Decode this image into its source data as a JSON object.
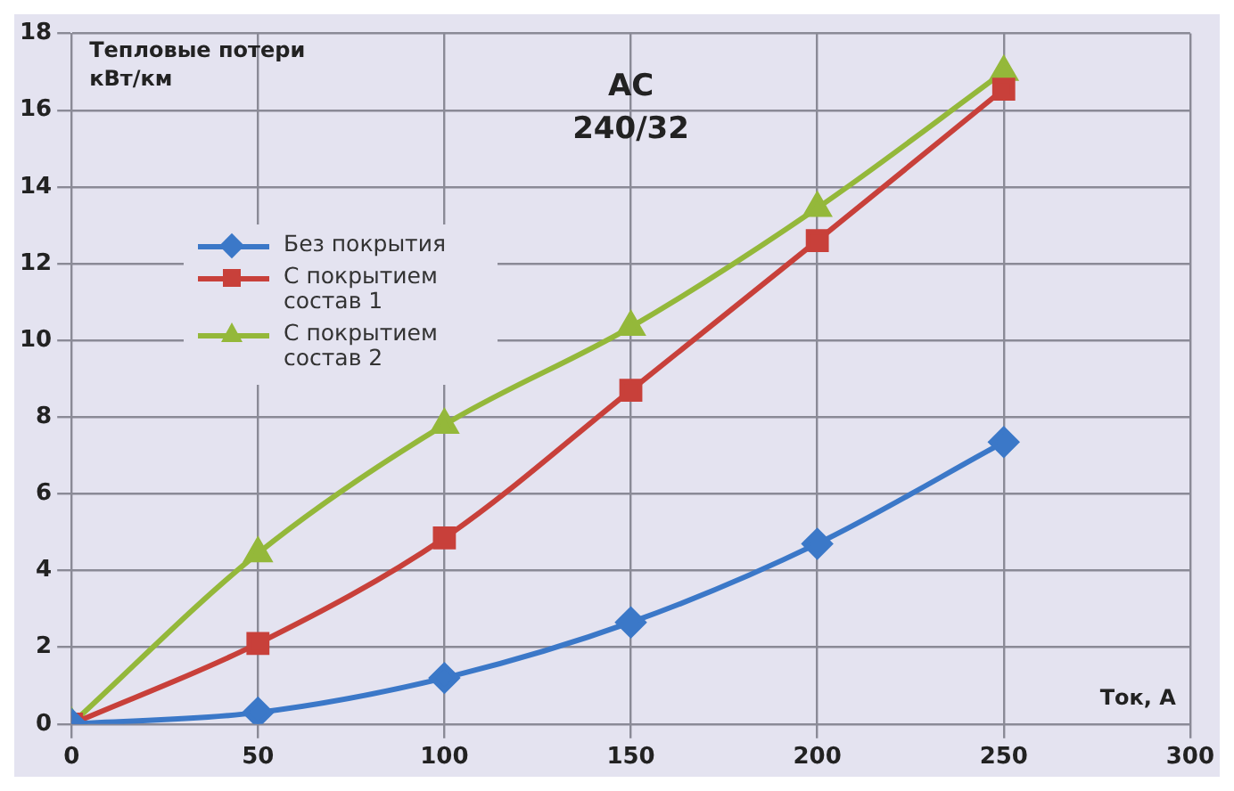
{
  "chart_data": {
    "type": "line",
    "title": "АС 240/32",
    "ylabel": "Тепловые потери кВт/км",
    "xlabel": "Ток, А",
    "x": [
      0,
      50,
      100,
      150,
      200,
      250
    ],
    "series": [
      {
        "name": "Без покрытия",
        "color": "#3b78c8",
        "marker": "diamond",
        "values": [
          0,
          0.3,
          1.2,
          2.65,
          4.7,
          7.35
        ]
      },
      {
        "name": "С покрытием состав 1",
        "color": "#c8403a",
        "marker": "square",
        "values": [
          0,
          2.1,
          4.85,
          8.7,
          12.6,
          16.55
        ]
      },
      {
        "name": "С покрытием состав 2",
        "color": "#94b83a",
        "marker": "triangle",
        "values": [
          0,
          4.45,
          7.8,
          10.35,
          13.45,
          17.0
        ]
      }
    ],
    "xlim": [
      0,
      300
    ],
    "xticks": [
      0,
      50,
      100,
      150,
      200,
      250,
      300
    ],
    "ylim": [
      0,
      18
    ],
    "yticks": [
      0,
      2,
      4,
      6,
      8,
      10,
      12,
      14,
      16,
      18
    ],
    "grid": true,
    "legend": "left",
    "line_style": "solid"
  }
}
